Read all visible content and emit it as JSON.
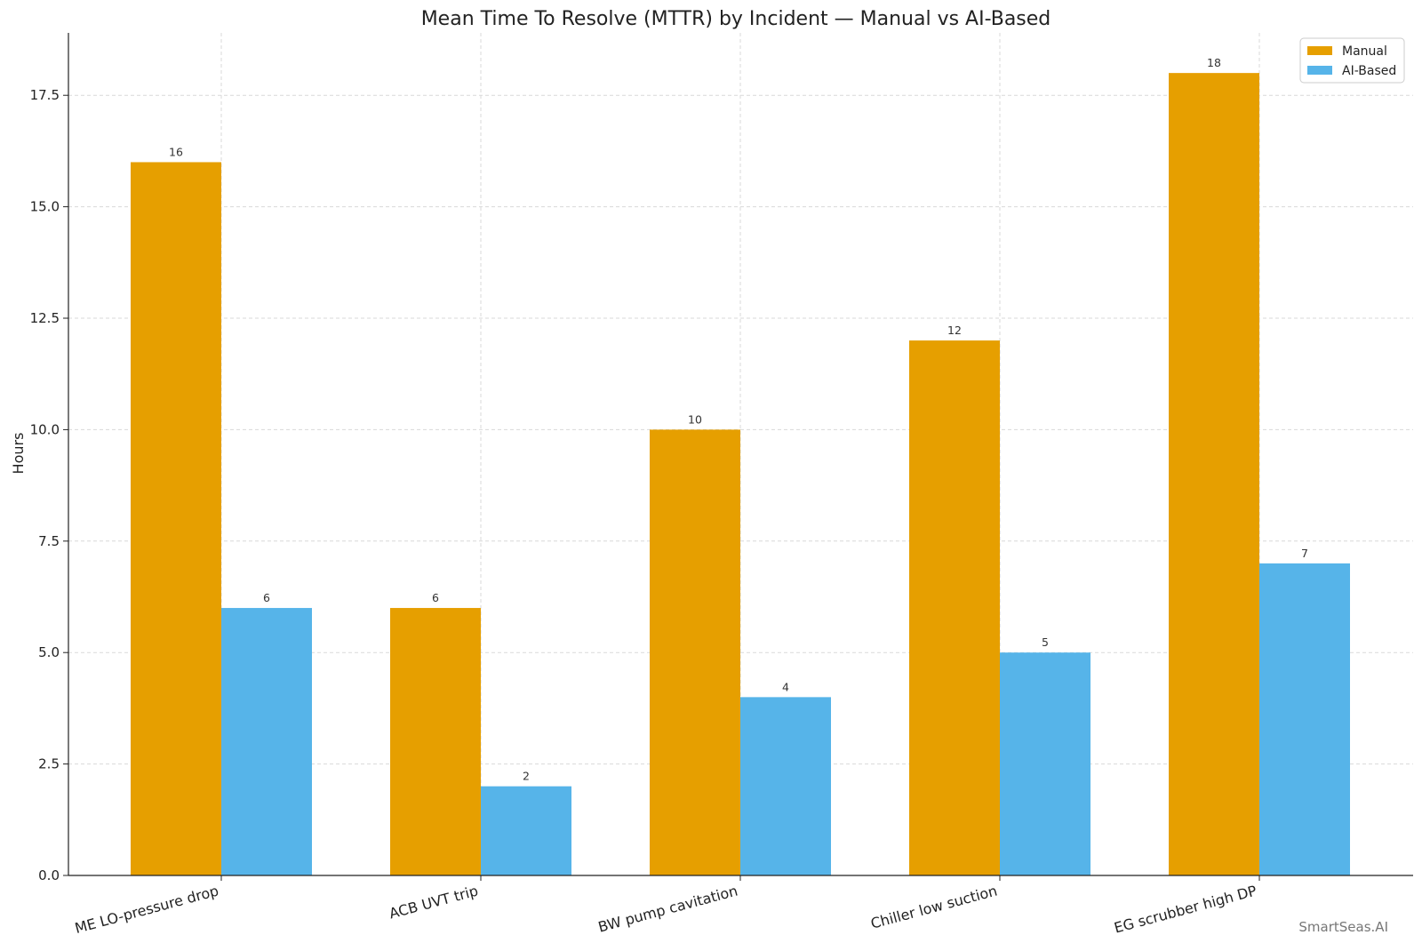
{
  "chart_data": {
    "type": "bar",
    "title": "Mean Time To Resolve (MTTR) by Incident — Manual vs AI-Based",
    "xlabel": "",
    "ylabel": "Hours",
    "categories": [
      "ME LO-pressure drop",
      "ACB UVT trip",
      "BW pump cavitation",
      "Chiller low suction",
      "EG scrubber high DP"
    ],
    "series": [
      {
        "name": "Manual",
        "values": [
          16,
          6,
          10,
          12,
          18
        ],
        "color": "#E69F00"
      },
      {
        "name": "AI-Based",
        "values": [
          6,
          2,
          4,
          5,
          7
        ],
        "color": "#56B4E9"
      }
    ],
    "ylim": [
      0,
      18.9
    ],
    "yticks": [
      "0.0",
      "2.5",
      "5.0",
      "7.5",
      "10.0",
      "12.5",
      "15.0",
      "17.5"
    ],
    "grid": true,
    "legend_position": "top-right",
    "data_labels": true
  },
  "watermark": "SmartSeas.AI"
}
